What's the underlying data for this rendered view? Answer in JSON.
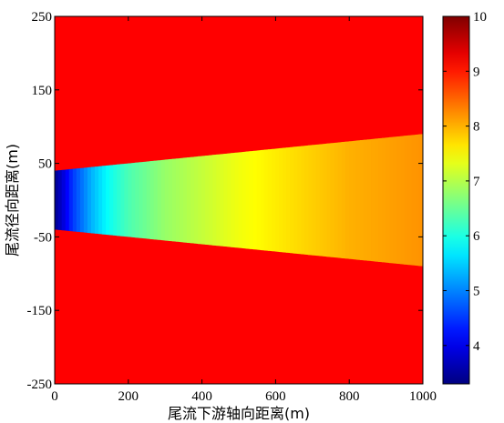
{
  "chart_data": {
    "type": "heatmap",
    "title": "",
    "xlabel": "尾流下游轴向距离(m)",
    "ylabel": "尾流径向距离(m)",
    "xlim": [
      0,
      1000
    ],
    "ylim": [
      -250,
      250
    ],
    "x_ticks": [
      "0",
      "200",
      "400",
      "600",
      "800",
      "1000"
    ],
    "y_ticks": [
      "250",
      "150",
      "50",
      "-50",
      "-150",
      "-250"
    ],
    "colorbar": {
      "range": [
        3.3,
        10
      ],
      "ticks": [
        "10",
        "9",
        "8",
        "7",
        "6",
        "5",
        "4"
      ],
      "colormap": "jet"
    },
    "background_value": 10,
    "wake_region": {
      "description_shape": "cone",
      "half_width_at_x0": 40,
      "half_width_at_x1000": 90,
      "x": [
        0,
        25,
        50,
        100,
        150,
        200,
        300,
        400,
        500,
        600,
        700,
        800,
        900,
        1000
      ],
      "values": [
        3.4,
        3.9,
        4.5,
        5.3,
        5.9,
        6.3,
        6.8,
        7.1,
        7.4,
        7.6,
        7.8,
        8.0,
        8.1,
        8.2
      ]
    }
  }
}
